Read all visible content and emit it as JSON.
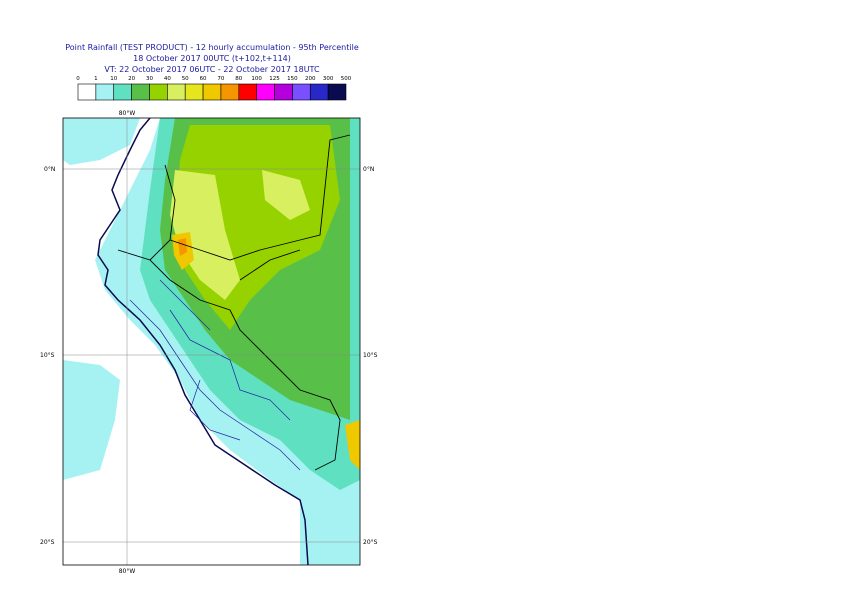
{
  "title": [
    "Point Rainfall (TEST PRODUCT) - 12 hourly accumulation - 95th Percentile",
    "18 October 2017 00UTC (t+102,t+114)",
    "VT: 22 October 2017 06UTC - 22 October 2017 18UTC"
  ],
  "colorbar": {
    "levels": [
      "0",
      "1",
      "10",
      "20",
      "30",
      "40",
      "50",
      "60",
      "70",
      "80",
      "100",
      "125",
      "150",
      "200",
      "300",
      "500"
    ],
    "colors": [
      "#ffffff",
      "#a6f2f2",
      "#5fe0c0",
      "#58c048",
      "#96d200",
      "#d8f060",
      "#e6e61e",
      "#f0c800",
      "#f59600",
      "#ff0000",
      "#ff00ff",
      "#b400dc",
      "#7850ff",
      "#2828c8",
      "#0a0a50"
    ]
  },
  "map": {
    "lat_labels": [
      "0°N",
      "10°S",
      "20°S"
    ],
    "lon_label": "80°W"
  }
}
